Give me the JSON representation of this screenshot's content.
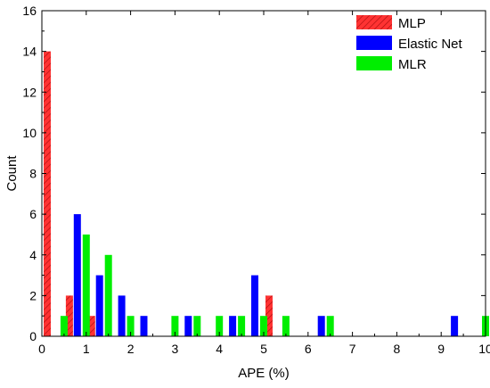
{
  "chart_data": {
    "type": "bar",
    "xlabel": "APE (%)",
    "ylabel": "Count",
    "xlim": [
      0,
      10
    ],
    "ylim": [
      0,
      16
    ],
    "xticks": [
      "0",
      "1",
      "2",
      "3",
      "4",
      "5",
      "6",
      "7",
      "8",
      "9",
      "10"
    ],
    "yticks": [
      "0",
      "2",
      "4",
      "6",
      "8",
      "10",
      "12",
      "14",
      "16"
    ],
    "grid": false,
    "legend_position": "top-right",
    "series": [
      {
        "name": "MLP",
        "color": "#ff3333",
        "hatch": true,
        "x": [
          0.12,
          0.62,
          1.12,
          5.12
        ],
        "values": [
          14,
          2,
          1,
          2
        ]
      },
      {
        "name": "Elastic Net",
        "color": "#0000ff",
        "x": [
          0.8,
          1.3,
          1.8,
          2.3,
          3.3,
          4.3,
          4.8,
          6.3,
          9.3
        ],
        "values": [
          6,
          3,
          2,
          1,
          1,
          1,
          3,
          1,
          1
        ]
      },
      {
        "name": "MLR",
        "color": "#00ee00",
        "x": [
          0.5,
          1.0,
          1.5,
          2.0,
          3.0,
          3.5,
          4.0,
          4.5,
          5.0,
          5.5,
          6.5,
          10.0
        ],
        "values": [
          1,
          5,
          4,
          1,
          1,
          1,
          1,
          1,
          1,
          1,
          1,
          1
        ]
      }
    ]
  }
}
